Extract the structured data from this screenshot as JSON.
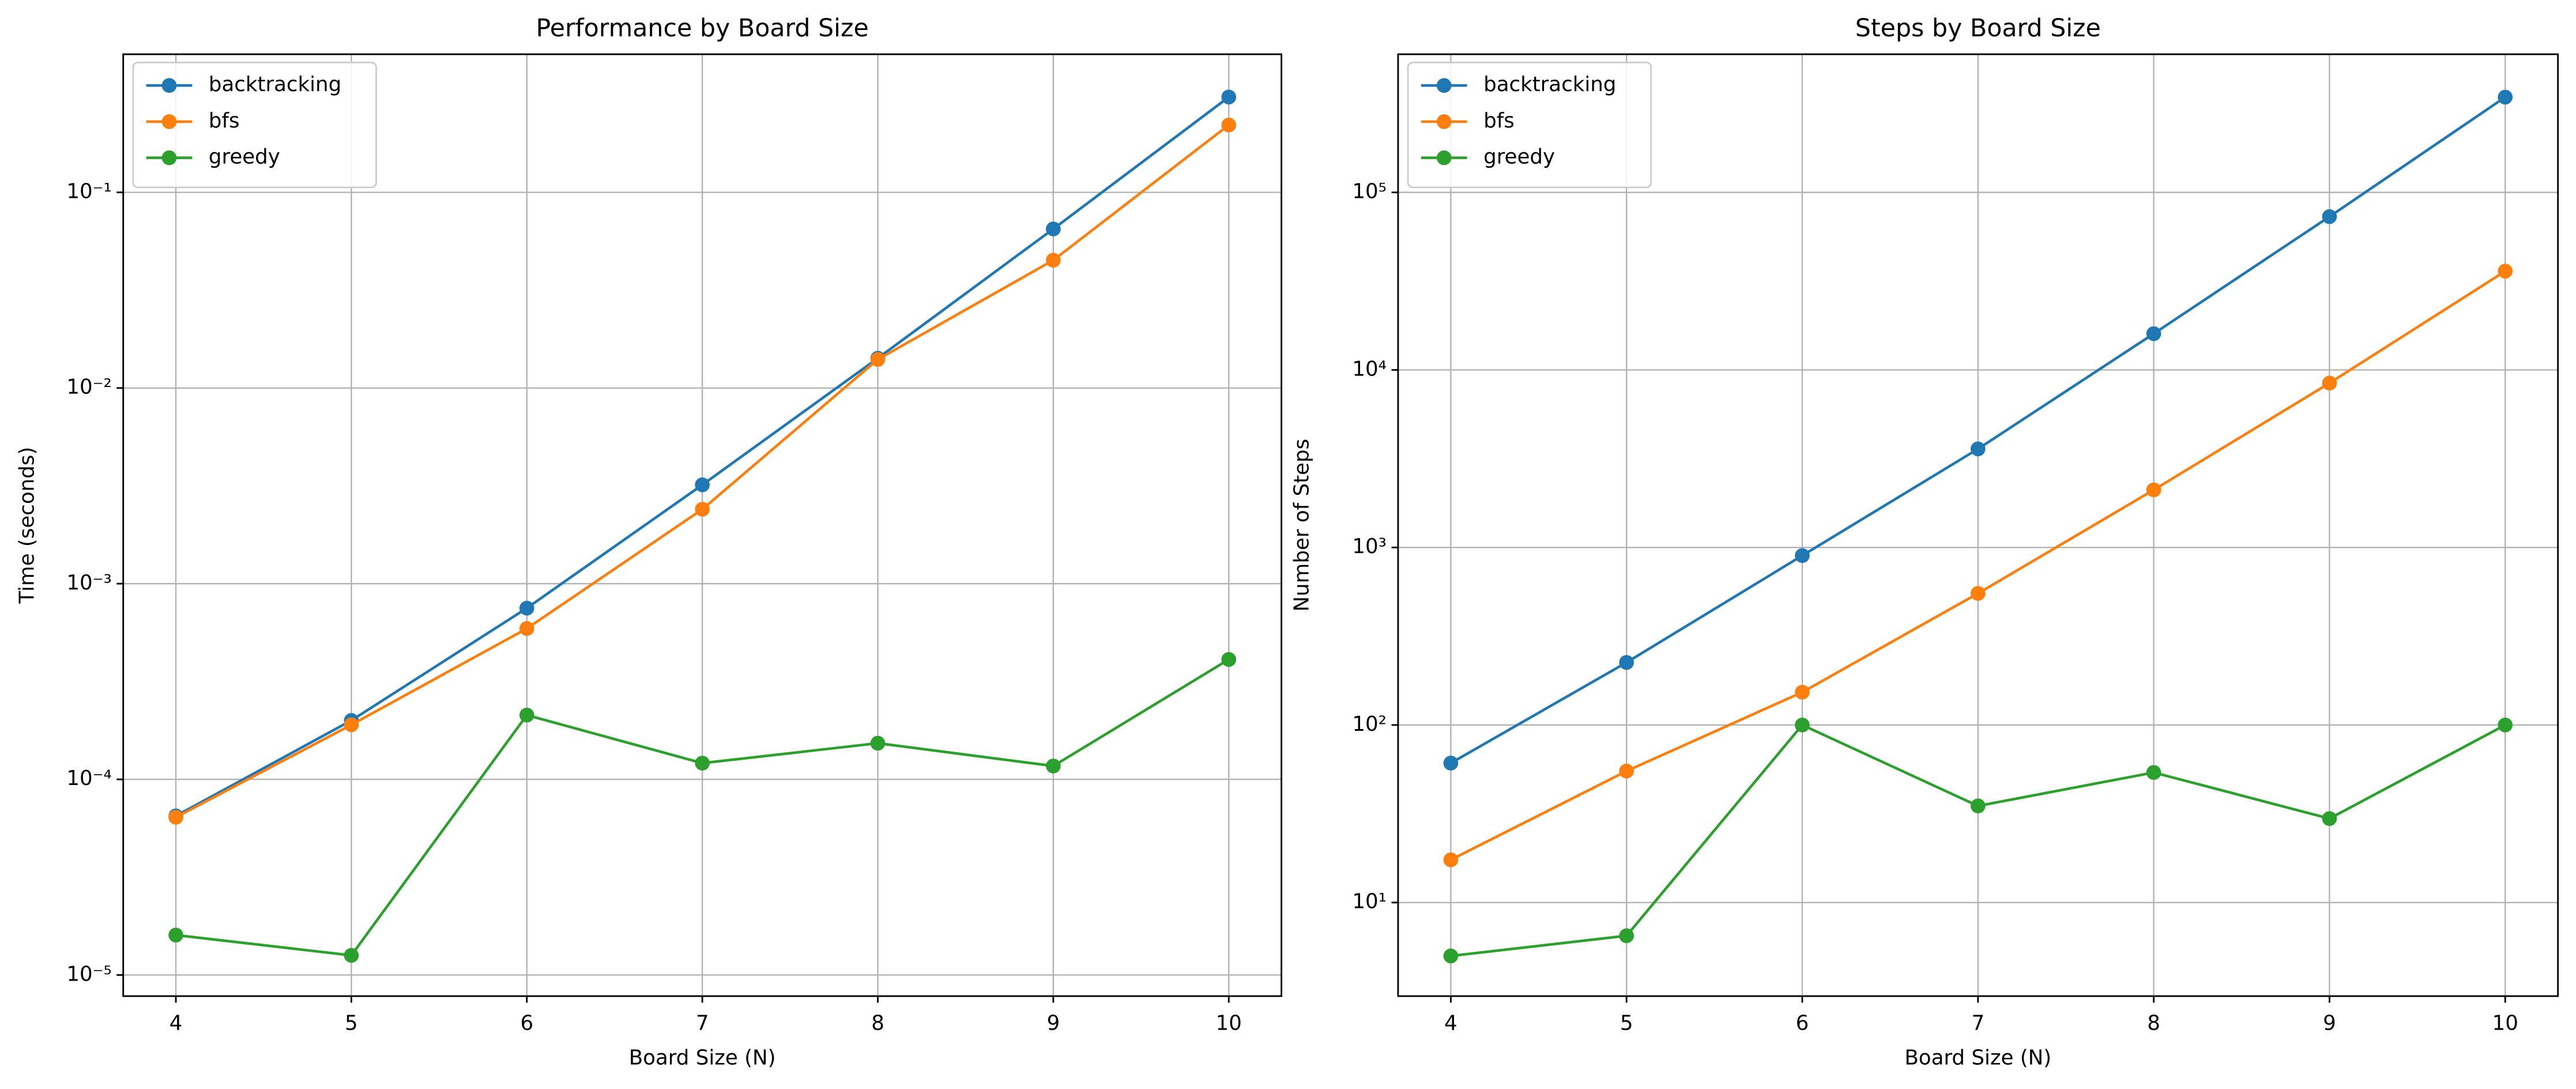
{
  "chart_data": [
    {
      "type": "line",
      "title": "Performance by Board Size",
      "xlabel": "Board Size (N)",
      "ylabel": "Time (seconds)",
      "x": [
        4,
        5,
        6,
        7,
        8,
        9,
        10
      ],
      "series": [
        {
          "name": "backtracking",
          "color": "#1f77b4",
          "values": [
            6.5e-05,
            0.0002,
            0.00075,
            0.0032,
            0.0142,
            0.065,
            0.307
          ]
        },
        {
          "name": "bfs",
          "color": "#ff7f0e",
          "values": [
            6.4e-05,
            0.00019,
            0.00059,
            0.0024,
            0.014,
            0.045,
            0.221
          ]
        },
        {
          "name": "greedy",
          "color": "#2ca02c",
          "values": [
            1.6e-05,
            1.26e-05,
            0.000213,
            0.000121,
            0.000153,
            0.000117,
            0.00041
          ]
        }
      ],
      "xlim": [
        3.7,
        10.3
      ],
      "ylim": [
        7.8e-06,
        0.508
      ],
      "log_y": true,
      "grid": true,
      "legend": "upper left",
      "xticks": [
        4,
        5,
        6,
        7,
        8,
        9,
        10
      ],
      "yticks": [
        {
          "value": 1e-05,
          "label": "10⁻⁵"
        },
        {
          "value": 0.0001,
          "label": "10⁻⁴"
        },
        {
          "value": 0.001,
          "label": "10⁻³"
        },
        {
          "value": 0.01,
          "label": "10⁻²"
        },
        {
          "value": 0.1,
          "label": "10⁻¹"
        }
      ]
    },
    {
      "type": "line",
      "title": "Steps by Board Size",
      "xlabel": "Board Size (N)",
      "ylabel": "Number of Steps",
      "x": [
        4,
        5,
        6,
        7,
        8,
        9,
        10
      ],
      "series": [
        {
          "name": "backtracking",
          "color": "#1f77b4",
          "values": [
            61,
            225,
            900,
            3590,
            16000,
            73000,
            344000
          ]
        },
        {
          "name": "bfs",
          "color": "#ff7f0e",
          "values": [
            17.4,
            55,
            153,
            551,
            2110,
            8430,
            36000
          ]
        },
        {
          "name": "greedy",
          "color": "#2ca02c",
          "values": [
            5,
            6.5,
            100,
            35,
            54,
            29.7,
            100
          ]
        }
      ],
      "xlim": [
        3.7,
        10.3
      ],
      "ylim": [
        2.97,
        600000
      ],
      "log_y": true,
      "grid": true,
      "legend": "upper left",
      "xticks": [
        4,
        5,
        6,
        7,
        8,
        9,
        10
      ],
      "yticks": [
        {
          "value": 10,
          "label": "10¹"
        },
        {
          "value": 100,
          "label": "10²"
        },
        {
          "value": 1000,
          "label": "10³"
        },
        {
          "value": 10000,
          "label": "10⁴"
        },
        {
          "value": 100000,
          "label": "10⁵"
        }
      ]
    }
  ]
}
